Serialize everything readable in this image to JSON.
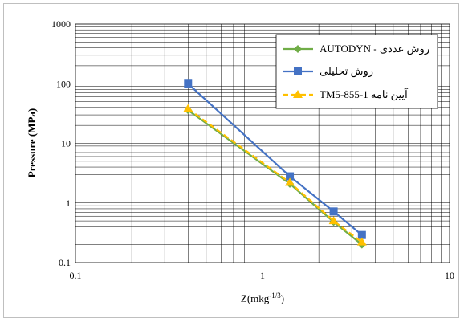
{
  "chart_data": {
    "type": "line",
    "xlabel": "Z(mkg",
    "xlabel_superscript": "-1/3",
    "xlabel_close": ")",
    "ylabel": "Pressure (MPa)",
    "x_scale": "log",
    "y_scale": "log",
    "xlim": [
      0.1,
      10
    ],
    "ylim": [
      0.1,
      1000
    ],
    "x_ticks": [
      {
        "value": 0.1,
        "label": "0.1"
      },
      {
        "value": 1,
        "label": "1"
      },
      {
        "value": 10,
        "label": "10"
      }
    ],
    "y_ticks": [
      {
        "value": 0.1,
        "label": "0.1"
      },
      {
        "value": 1,
        "label": "1"
      },
      {
        "value": 10,
        "label": "10"
      },
      {
        "value": 100,
        "label": "100"
      },
      {
        "value": 1000,
        "label": "1000"
      }
    ],
    "grid": true,
    "legend_position": "top-right",
    "series": [
      {
        "name": "روش عددی - AUTODYN",
        "color": "#70ad47",
        "marker": "diamond",
        "dashed": false,
        "x": [
          0.4,
          1.4,
          2.4,
          3.4
        ],
        "y": [
          36,
          2.1,
          0.48,
          0.2
        ]
      },
      {
        "name": "روش تحلیلی",
        "color": "#4472c4",
        "marker": "square",
        "dashed": false,
        "x": [
          0.4,
          1.4,
          2.4,
          3.4
        ],
        "y": [
          100,
          2.8,
          0.72,
          0.29
        ]
      },
      {
        "name": "آیین نامه TM5-855-1",
        "color": "#ffc000",
        "marker": "triangle",
        "dashed": true,
        "x": [
          0.4,
          1.4,
          2.4,
          3.4
        ],
        "y": [
          38,
          2.2,
          0.5,
          0.22
        ]
      }
    ]
  }
}
